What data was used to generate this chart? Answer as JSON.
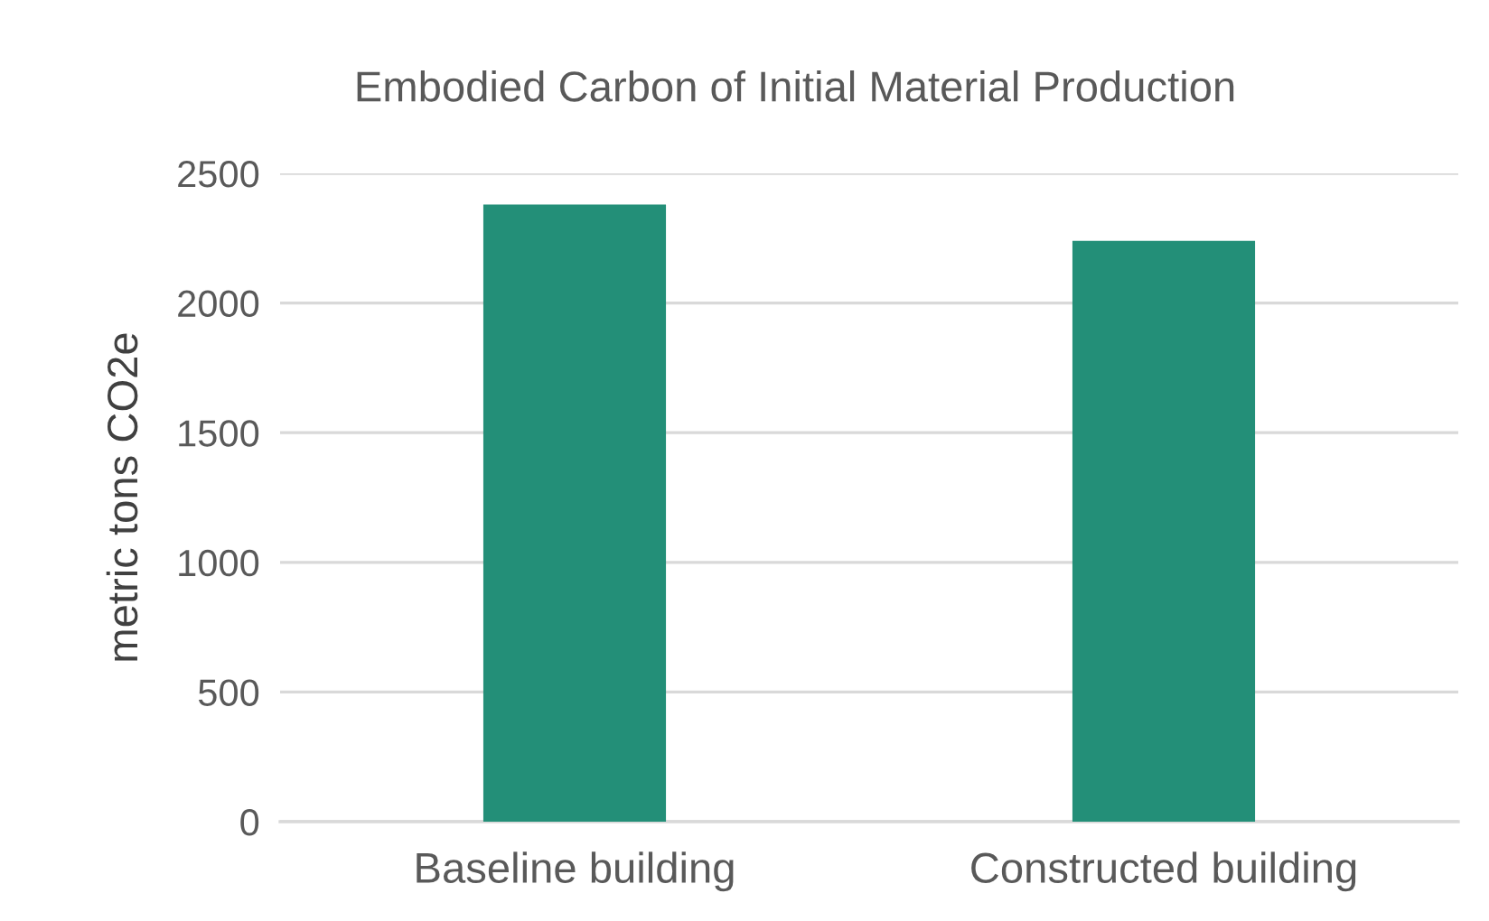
{
  "chart_data": {
    "type": "bar",
    "title": "Embodied Carbon of Initial Material Production",
    "ylabel": "metric tons CO2e",
    "categories": [
      "Baseline building",
      "Constructed building"
    ],
    "values": [
      2380,
      2240
    ],
    "color": "#238f78",
    "ylim": [
      0,
      2500
    ],
    "yticks": [
      0,
      500,
      1000,
      1500,
      2000,
      2500
    ],
    "grid": "y",
    "legend": false
  }
}
